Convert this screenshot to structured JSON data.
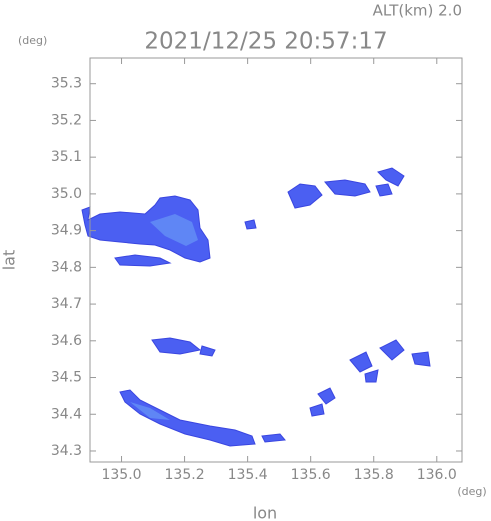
{
  "chart_data": {
    "type": "map",
    "title": "2021/12/25 20:57:17",
    "subtitle": "ALT(km) 2.0",
    "x_label": "lon",
    "y_label": "lat",
    "x_unit": "(deg)",
    "y_unit": "(deg)",
    "xlim": [
      134.9,
      136.08
    ],
    "ylim": [
      34.27,
      35.37
    ],
    "xticks": [
      {
        "value": 135,
        "label": "135.0"
      },
      135.2,
      135.4,
      135.6,
      135.8,
      {
        "value": 136,
        "label": "136.0"
      }
    ],
    "yticks": [
      34.3,
      34.4,
      34.5,
      34.6,
      34.7,
      34.8,
      34.9,
      {
        "value": 35,
        "label": "35.0"
      },
      35.1,
      35.2,
      35.3
    ]
  }
}
